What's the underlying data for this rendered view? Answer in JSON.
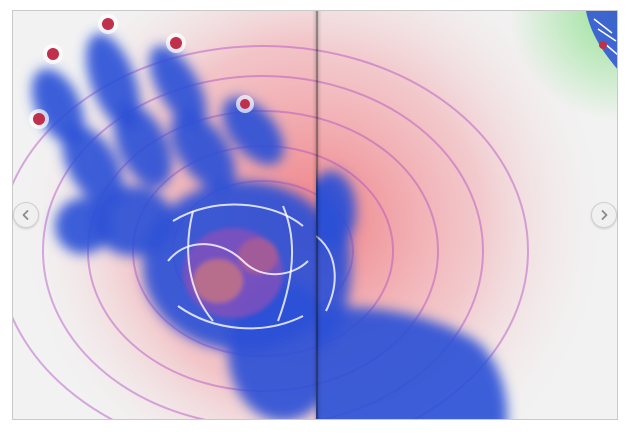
{
  "viewer": {
    "colors": {
      "blue": "#2a4fd6",
      "red": "#ee6a70",
      "green": "#8fe08f",
      "paper": "#f2f2f2"
    },
    "icons": {
      "previous": "chevron-left-icon",
      "next": "chevron-right-icon"
    }
  }
}
